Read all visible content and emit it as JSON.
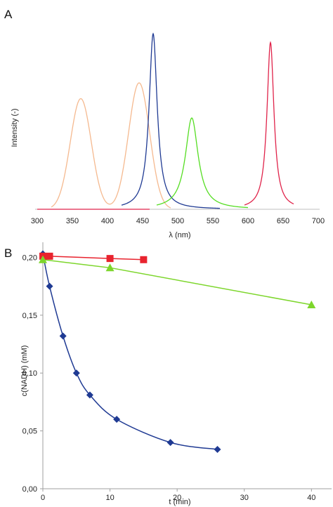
{
  "chart_data": [
    {
      "panel": "A",
      "type": "line",
      "xlabel": "λ (nm)",
      "ylabel": "Intensity (-)",
      "xlim": [
        300,
        700
      ],
      "ylim": [
        0,
        1
      ],
      "xticks": [
        300,
        350,
        400,
        450,
        500,
        550,
        600,
        650,
        700
      ],
      "grid": false,
      "legend": "none",
      "series": [
        {
          "color": "#f5b98f",
          "curve": "two-peak",
          "peaks": [
            {
              "center": 362,
              "width": 15,
              "height": 0.63
            },
            {
              "center": 445,
              "width": 15,
              "height": 0.72
            }
          ],
          "x_range": [
            320,
            490
          ]
        },
        {
          "color": "#1f3a93",
          "curve": "lorentz",
          "center": 465,
          "width": 7,
          "height": 1.0,
          "x_range": [
            420,
            560
          ]
        },
        {
          "color": "#55dd22",
          "curve": "lorentz",
          "center": 520,
          "width": 11,
          "height": 0.52,
          "x_range": [
            470,
            600
          ]
        },
        {
          "color": "#e0234a",
          "curve": "lorentz",
          "center": 632,
          "width": 6,
          "height": 0.95,
          "x_range": [
            595,
            665
          ]
        },
        {
          "color": "#e0234a",
          "curve": "baseline",
          "x_range": [
            300,
            460
          ]
        }
      ]
    },
    {
      "panel": "B",
      "type": "scatter",
      "xlabel": "t (min)",
      "ylabel": "c(NADH) (mM)",
      "xlim": [
        0,
        43
      ],
      "ylim": [
        0,
        0.21
      ],
      "xticks": [
        0,
        10,
        20,
        30,
        40
      ],
      "yticks": [
        0,
        0.05,
        0.1,
        0.15,
        0.2
      ],
      "ytick_labels": [
        "0,00",
        "0,05",
        "0,10",
        "0,15",
        "0,20"
      ],
      "grid": false,
      "legend": "none",
      "series": [
        {
          "color": "#1f3a93",
          "marker": "diamond",
          "x": [
            0,
            1,
            3,
            5,
            7,
            11,
            19,
            26
          ],
          "y": [
            0.203,
            0.175,
            0.132,
            0.1,
            0.081,
            0.06,
            0.04,
            0.034
          ]
        },
        {
          "color": "#e8232e",
          "marker": "square",
          "x": [
            0,
            1,
            10,
            15
          ],
          "y": [
            0.201,
            0.201,
            0.199,
            0.198
          ]
        },
        {
          "color": "#7dd62c",
          "marker": "triangle",
          "x": [
            0,
            10,
            40
          ],
          "y": [
            0.198,
            0.191,
            0.159
          ]
        }
      ]
    }
  ]
}
